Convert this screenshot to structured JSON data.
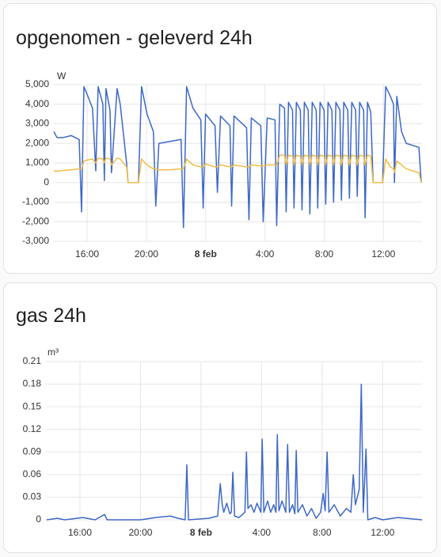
{
  "chart_data": [
    {
      "type": "line",
      "title": "opgenomen - geleverd 24h",
      "y_label": "W",
      "x": [
        13.75,
        13.96,
        14.39,
        14.92,
        15.46,
        15.62,
        15.78,
        16.0,
        16.36,
        16.58,
        16.74,
        17.06,
        17.16,
        17.27,
        17.54,
        17.64,
        18.02,
        18.23,
        18.66,
        18.76,
        19.46,
        19.67,
        20.04,
        20.47,
        20.63,
        20.84,
        21.59,
        22.34,
        22.5,
        22.71,
        23.14,
        23.67,
        23.83,
        23.99,
        24.63,
        24.79,
        25.0,
        25.64,
        25.75,
        25.91,
        26.76,
        26.92,
        27.08,
        27.72,
        27.88,
        28.15,
        28.68,
        28.79,
        29.0,
        29.32,
        29.43,
        29.59,
        29.86,
        29.96,
        30.12,
        30.39,
        30.5,
        30.66,
        30.92,
        31.03,
        31.19,
        31.46,
        31.56,
        31.72,
        31.99,
        32.1,
        32.26,
        32.52,
        32.63,
        32.79,
        33.06,
        33.16,
        33.32,
        33.59,
        33.7,
        33.86,
        34.12,
        34.23,
        34.39,
        34.66,
        34.76,
        34.92,
        35.14,
        35.3,
        35.94,
        36.15,
        36.47,
        36.68,
        36.74,
        36.9,
        37.22,
        37.54,
        38.39,
        38.55
      ],
      "series": [
        {
          "color": "#3d67c8",
          "values": [
            2600,
            2300,
            2300,
            2400,
            2200,
            -1500,
            4900,
            4500,
            3800,
            600,
            4900,
            4000,
            100,
            4800,
            3700,
            500,
            4800,
            4000,
            1000,
            0,
            0,
            4900,
            3500,
            2600,
            -1200,
            2000,
            2100,
            2200,
            -2300,
            4900,
            3800,
            3200,
            -1300,
            3500,
            2900,
            -500,
            3400,
            2900,
            -1200,
            3400,
            2800,
            -1900,
            3300,
            2900,
            -2000,
            3300,
            3200,
            -2200,
            4000,
            3800,
            -1500,
            4100,
            3700,
            -1300,
            4100,
            3700,
            -1400,
            4100,
            3700,
            -1600,
            4100,
            3700,
            -1300,
            4100,
            3700,
            -1100,
            4100,
            3700,
            -1000,
            4100,
            3700,
            -900,
            4100,
            3700,
            -800,
            4100,
            3700,
            -700,
            4100,
            3700,
            -1800,
            4100,
            3600,
            0,
            0,
            4900,
            4400,
            4000,
            0,
            4400,
            2600,
            2000,
            1800,
            0
          ]
        },
        {
          "color": "#f0bd44",
          "values": [
            600,
            580,
            620,
            650,
            700,
            700,
            1100,
            1150,
            1200,
            1000,
            1250,
            1200,
            1000,
            1250,
            1200,
            900,
            1250,
            1200,
            800,
            0,
            0,
            1200,
            900,
            700,
            700,
            650,
            650,
            700,
            700,
            1200,
            900,
            800,
            800,
            950,
            800,
            800,
            900,
            800,
            800,
            900,
            800,
            800,
            900,
            850,
            850,
            900,
            900,
            900,
            1400,
            1400,
            900,
            1400,
            1350,
            900,
            1400,
            1350,
            900,
            1400,
            1350,
            900,
            1400,
            1350,
            900,
            1400,
            1350,
            900,
            1400,
            1350,
            900,
            1400,
            1350,
            900,
            1400,
            1350,
            900,
            1400,
            1350,
            900,
            1400,
            1350,
            900,
            1400,
            1350,
            0,
            0,
            1200,
            800,
            700,
            500,
            1100,
            900,
            700,
            500,
            0
          ]
        }
      ],
      "xlim": [
        13.75,
        38.6
      ],
      "xticks": [
        {
          "value": 16,
          "label": "16:00"
        },
        {
          "value": 20,
          "label": "20:00"
        },
        {
          "value": 24,
          "label": "8 feb"
        },
        {
          "value": 28,
          "label": "4:00"
        },
        {
          "value": 32,
          "label": "8:00"
        },
        {
          "value": 36,
          "label": "12:00"
        }
      ],
      "ylim": [
        -3000,
        5000
      ],
      "yticks": [
        {
          "value": 5000,
          "label": "5,000"
        },
        {
          "value": 4000,
          "label": "4,000"
        },
        {
          "value": 3000,
          "label": "3,000"
        },
        {
          "value": 2000,
          "label": "2,000"
        },
        {
          "value": 1000,
          "label": "1,000"
        },
        0,
        {
          "value": -1000,
          "label": "-1,000"
        },
        {
          "value": -2000,
          "label": "-2,000"
        },
        {
          "value": -3000,
          "label": "-3,000"
        }
      ],
      "grid": true
    },
    {
      "type": "line",
      "title": "gas 24h",
      "y_label": "m³",
      "x": [
        13.8,
        14.5,
        15.0,
        16.2,
        17.0,
        17.62,
        17.8,
        20,
        21.0,
        21.97,
        22.5,
        22.95,
        23.06,
        23.17,
        24.5,
        25.1,
        25.27,
        25.4,
        25.5,
        25.7,
        25.9,
        26.0,
        26.1,
        26.22,
        26.5,
        26.9,
        27.0,
        27.1,
        27.3,
        27.5,
        27.7,
        27.95,
        28.04,
        28.15,
        28.4,
        28.6,
        28.8,
        28.95,
        29.04,
        29.15,
        29.35,
        29.6,
        29.72,
        29.84,
        30.05,
        30.2,
        30.29,
        30.4,
        30.7,
        31.0,
        31.3,
        31.6,
        31.9,
        32.07,
        32.2,
        32.33,
        32.45,
        32.8,
        33.2,
        33.6,
        33.9,
        34.06,
        34.2,
        34.45,
        34.59,
        34.72,
        34.9,
        35.02,
        35.5,
        36,
        37,
        38.6
      ],
      "series": [
        {
          "color": "#3d67c8",
          "values": [
            0,
            0.002,
            0,
            0.003,
            0,
            0.007,
            0,
            0,
            0.003,
            0.005,
            0.002,
            0,
            0.073,
            0,
            0.002,
            0.005,
            0.048,
            0.02,
            0.01,
            0.022,
            0.008,
            0.01,
            0.063,
            0.005,
            0.003,
            0.01,
            0.09,
            0.015,
            0.02,
            0.01,
            0.022,
            0.01,
            0.107,
            0.01,
            0.025,
            0.01,
            0.02,
            0.01,
            0.113,
            0.012,
            0.025,
            0.01,
            0.1,
            0.01,
            0.02,
            0.008,
            0.092,
            0.01,
            0.02,
            0.005,
            0.015,
            0.002,
            0.01,
            0.035,
            0.012,
            0.09,
            0.01,
            0.02,
            0.005,
            0.015,
            0.01,
            0.06,
            0.02,
            0.04,
            0.18,
            0.01,
            0.094,
            0,
            0.003,
            0,
            0.003,
            0
          ]
        }
      ],
      "xlim": [
        13.75,
        38.6
      ],
      "xticks": [
        {
          "value": 16,
          "label": "16:00"
        },
        {
          "value": 20,
          "label": "20:00"
        },
        {
          "value": 24,
          "label": "8 feb"
        },
        {
          "value": 28,
          "label": "4:00"
        },
        {
          "value": 32,
          "label": "8:00"
        },
        {
          "value": 36,
          "label": "12:00"
        }
      ],
      "ylim": [
        0,
        0.21
      ],
      "yticks": [
        0.21,
        0.18,
        0.15,
        0.12,
        0.09,
        0.06,
        0.03,
        0
      ],
      "grid": true
    }
  ]
}
